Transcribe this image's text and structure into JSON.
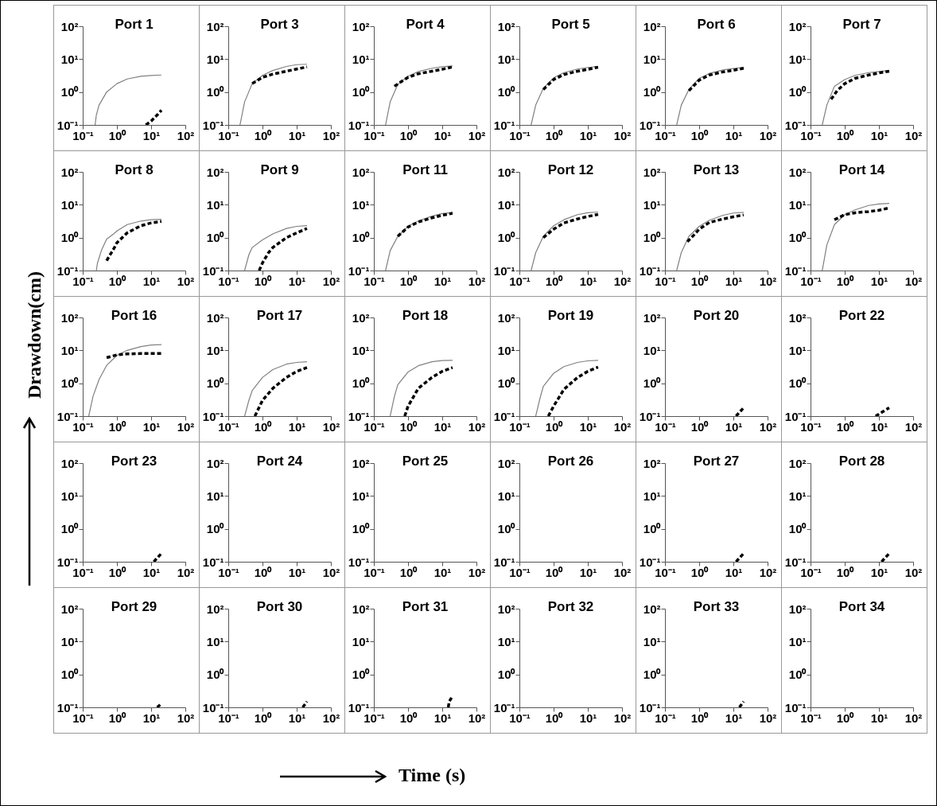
{
  "chart_data": [
    {
      "type": "line",
      "title": "Port 1",
      "xlabel": null,
      "xlim": [
        0.1,
        100
      ],
      "ylim": [
        0.1,
        100
      ],
      "xticks": [
        {
          "value": 0.1,
          "label": "10⁻¹"
        },
        {
          "value": 1,
          "label": "10⁰"
        },
        {
          "value": 10,
          "label": "10¹"
        },
        {
          "value": 100,
          "label": "10²"
        }
      ],
      "yticks": [
        {
          "value": 0.1,
          "label": "10⁻¹"
        },
        {
          "value": 1,
          "label": "10⁰"
        },
        {
          "value": 10,
          "label": "10¹"
        },
        {
          "value": 100,
          "label": "10²"
        }
      ],
      "log": "xy",
      "series": [
        {
          "color": "#808080",
          "line_style": "solid",
          "x": [
            0.23,
            0.25,
            0.3,
            0.5,
            1,
            2,
            5,
            10,
            20
          ],
          "values": [
            0.1,
            0.2,
            0.4,
            1.0,
            1.8,
            2.5,
            3.0,
            3.2,
            3.3
          ]
        },
        {
          "color": "#000000",
          "line_style": "dashed",
          "x": [
            7,
            10,
            15,
            20
          ],
          "values": [
            0.1,
            0.13,
            0.2,
            0.28
          ]
        }
      ]
    },
    {
      "type": "line",
      "title": "Port 3",
      "xlim": [
        0.1,
        100
      ],
      "ylim": [
        0.1,
        100
      ],
      "xticks": [
        {
          "value": 0.1,
          "label": "10⁻¹"
        },
        {
          "value": 1,
          "label": "10⁰"
        },
        {
          "value": 10,
          "label": "10¹"
        },
        {
          "value": 100,
          "label": "10²"
        }
      ],
      "yticks": [
        {
          "value": 0.1,
          "label": "10⁻¹"
        },
        {
          "value": 1,
          "label": "10⁰"
        },
        {
          "value": 10,
          "label": "10¹"
        },
        {
          "value": 100,
          "label": "10²"
        }
      ],
      "log": "xy",
      "series": [
        {
          "color": "#808080",
          "line_style": "solid",
          "x": [
            0.22,
            0.3,
            0.5,
            1,
            2,
            5,
            10,
            20
          ],
          "values": [
            0.1,
            0.5,
            1.8,
            3.2,
            4.5,
            6,
            6.8,
            7
          ]
        },
        {
          "color": "#000000",
          "line_style": "dashed",
          "x": [
            0.5,
            1,
            2,
            5,
            10,
            20
          ],
          "values": [
            1.8,
            2.8,
            3.5,
            4.3,
            5,
            5.8
          ]
        }
      ]
    },
    {
      "type": "line",
      "title": "Port 4",
      "xlim": [
        0.1,
        100
      ],
      "ylim": [
        0.1,
        100
      ],
      "xticks": [
        {
          "value": 0.1,
          "label": "10⁻¹"
        },
        {
          "value": 1,
          "label": "10⁰"
        },
        {
          "value": 10,
          "label": "10¹"
        },
        {
          "value": 100,
          "label": "10²"
        }
      ],
      "yticks": [
        {
          "value": 0.1,
          "label": "10⁻¹"
        },
        {
          "value": 1,
          "label": "10⁰"
        },
        {
          "value": 10,
          "label": "10¹"
        },
        {
          "value": 100,
          "label": "10²"
        }
      ],
      "log": "xy",
      "series": [
        {
          "color": "#808080",
          "line_style": "solid",
          "x": [
            0.22,
            0.3,
            0.5,
            1,
            2,
            5,
            10,
            20
          ],
          "values": [
            0.1,
            0.5,
            1.7,
            3,
            4.2,
            5.3,
            5.9,
            6.2
          ]
        },
        {
          "color": "#000000",
          "line_style": "dashed",
          "x": [
            0.4,
            0.6,
            1,
            2,
            5,
            10,
            20
          ],
          "values": [
            1.5,
            2,
            2.8,
            3.6,
            4.3,
            4.9,
            5.8
          ]
        }
      ]
    },
    {
      "type": "line",
      "title": "Port 5",
      "xlim": [
        0.1,
        100
      ],
      "ylim": [
        0.1,
        100
      ],
      "xticks": [
        {
          "value": 0.1,
          "label": "10⁻¹"
        },
        {
          "value": 1,
          "label": "10⁰"
        },
        {
          "value": 10,
          "label": "10¹"
        },
        {
          "value": 100,
          "label": "10²"
        }
      ],
      "yticks": [
        {
          "value": 0.1,
          "label": "10⁻¹"
        },
        {
          "value": 1,
          "label": "10⁰"
        },
        {
          "value": 10,
          "label": "10¹"
        },
        {
          "value": 100,
          "label": "10²"
        }
      ],
      "log": "xy",
      "series": [
        {
          "color": "#808080",
          "line_style": "solid",
          "x": [
            0.22,
            0.3,
            0.5,
            1,
            2,
            5,
            10,
            20
          ],
          "values": [
            0.1,
            0.4,
            1.3,
            2.7,
            3.9,
            5,
            5.6,
            6
          ]
        },
        {
          "color": "#000000",
          "line_style": "dashed",
          "x": [
            0.5,
            1,
            2,
            5,
            10,
            20
          ],
          "values": [
            1.2,
            2.4,
            3.4,
            4.3,
            4.9,
            5.7
          ]
        }
      ]
    },
    {
      "type": "line",
      "title": "Port 6",
      "xlim": [
        0.1,
        100
      ],
      "ylim": [
        0.1,
        100
      ],
      "xticks": [
        {
          "value": 0.1,
          "label": "10⁻¹"
        },
        {
          "value": 1,
          "label": "10⁰"
        },
        {
          "value": 10,
          "label": "10¹"
        },
        {
          "value": 100,
          "label": "10²"
        }
      ],
      "yticks": [
        {
          "value": 0.1,
          "label": "10⁻¹"
        },
        {
          "value": 1,
          "label": "10⁰"
        },
        {
          "value": 10,
          "label": "10¹"
        },
        {
          "value": 100,
          "label": "10²"
        }
      ],
      "log": "xy",
      "series": [
        {
          "color": "#808080",
          "line_style": "solid",
          "x": [
            0.22,
            0.3,
            0.5,
            1,
            2,
            5,
            10,
            20
          ],
          "values": [
            0.1,
            0.4,
            1.2,
            2.6,
            3.7,
            4.7,
            5.2,
            5.6
          ]
        },
        {
          "color": "#000000",
          "line_style": "dashed",
          "x": [
            0.5,
            1,
            2,
            5,
            10,
            20
          ],
          "values": [
            1.1,
            2.3,
            3.3,
            4.1,
            4.6,
            5.3
          ]
        }
      ]
    },
    {
      "type": "line",
      "title": "Port 7",
      "xlim": [
        0.1,
        100
      ],
      "ylim": [
        0.1,
        100
      ],
      "xticks": [
        {
          "value": 0.1,
          "label": "10⁻¹"
        },
        {
          "value": 1,
          "label": "10⁰"
        },
        {
          "value": 10,
          "label": "10¹"
        },
        {
          "value": 100,
          "label": "10²"
        }
      ],
      "yticks": [
        {
          "value": 0.1,
          "label": "10⁻¹"
        },
        {
          "value": 1,
          "label": "10⁰"
        },
        {
          "value": 10,
          "label": "10¹"
        },
        {
          "value": 100,
          "label": "10²"
        }
      ],
      "log": "xy",
      "series": [
        {
          "color": "#808080",
          "line_style": "solid",
          "x": [
            0.22,
            0.3,
            0.5,
            1,
            2,
            5,
            10,
            20
          ],
          "values": [
            0.1,
            0.4,
            1.5,
            2.4,
            3.2,
            3.9,
            4.2,
            4.5
          ]
        },
        {
          "color": "#000000",
          "line_style": "dashed",
          "x": [
            0.4,
            0.6,
            1,
            2,
            5,
            10,
            20
          ],
          "values": [
            0.6,
            1.1,
            1.8,
            2.6,
            3.3,
            3.8,
            4.3
          ]
        }
      ]
    },
    {
      "type": "line",
      "title": "Port 8",
      "xlim": [
        0.1,
        100
      ],
      "ylim": [
        0.1,
        100
      ],
      "xticks": [
        {
          "value": 0.1,
          "label": "10⁻¹"
        },
        {
          "value": 1,
          "label": "10⁰"
        },
        {
          "value": 10,
          "label": "10¹"
        },
        {
          "value": 100,
          "label": "10²"
        }
      ],
      "yticks": [
        {
          "value": 0.1,
          "label": "10⁻¹"
        },
        {
          "value": 1,
          "label": "10⁰"
        },
        {
          "value": 10,
          "label": "10¹"
        },
        {
          "value": 100,
          "label": "10²"
        }
      ],
      "log": "xy",
      "series": [
        {
          "color": "#808080",
          "line_style": "solid",
          "x": [
            0.25,
            0.27,
            0.35,
            0.5,
            0.8,
            1,
            2,
            5,
            10,
            20
          ],
          "values": [
            0.1,
            0.17,
            0.4,
            0.9,
            1.3,
            1.6,
            2.5,
            3.2,
            3.5,
            3.6
          ]
        },
        {
          "color": "#000000",
          "line_style": "dashed",
          "x": [
            0.5,
            0.8,
            1,
            2,
            5,
            10,
            20
          ],
          "values": [
            0.2,
            0.45,
            0.7,
            1.4,
            2.3,
            2.8,
            3.1
          ]
        }
      ]
    },
    {
      "type": "line",
      "title": "Port 9",
      "xlim": [
        0.1,
        100
      ],
      "ylim": [
        0.1,
        100
      ],
      "xticks": [
        {
          "value": 0.1,
          "label": "10⁻¹"
        },
        {
          "value": 1,
          "label": "10⁰"
        },
        {
          "value": 10,
          "label": "10¹"
        },
        {
          "value": 100,
          "label": "10²"
        }
      ],
      "yticks": [
        {
          "value": 0.1,
          "label": "10⁻¹"
        },
        {
          "value": 1,
          "label": "10⁰"
        },
        {
          "value": 10,
          "label": "10¹"
        },
        {
          "value": 100,
          "label": "10²"
        }
      ],
      "log": "xy",
      "series": [
        {
          "color": "#808080",
          "line_style": "solid",
          "x": [
            0.3,
            0.4,
            0.5,
            1,
            2,
            5,
            10,
            20
          ],
          "values": [
            0.1,
            0.3,
            0.5,
            0.85,
            1.3,
            1.9,
            2.2,
            2.3
          ]
        },
        {
          "color": "#000000",
          "line_style": "dashed",
          "x": [
            0.8,
            1,
            1.5,
            2,
            5,
            10,
            20
          ],
          "values": [
            0.1,
            0.17,
            0.35,
            0.5,
            1,
            1.4,
            1.9
          ]
        }
      ]
    },
    {
      "type": "line",
      "title": "Port 11",
      "xlim": [
        0.1,
        100
      ],
      "ylim": [
        0.1,
        100
      ],
      "xticks": [
        {
          "value": 0.1,
          "label": "10⁻¹"
        },
        {
          "value": 1,
          "label": "10⁰"
        },
        {
          "value": 10,
          "label": "10¹"
        },
        {
          "value": 100,
          "label": "10²"
        }
      ],
      "yticks": [
        {
          "value": 0.1,
          "label": "10⁻¹"
        },
        {
          "value": 1,
          "label": "10⁰"
        },
        {
          "value": 10,
          "label": "10¹"
        },
        {
          "value": 100,
          "label": "10²"
        }
      ],
      "log": "xy",
      "series": [
        {
          "color": "#808080",
          "line_style": "solid",
          "x": [
            0.22,
            0.3,
            0.5,
            1,
            2,
            5,
            10,
            20
          ],
          "values": [
            0.1,
            0.4,
            1.1,
            2.2,
            3.2,
            4.5,
            5.4,
            5.8
          ]
        },
        {
          "color": "#000000",
          "line_style": "dashed",
          "x": [
            0.5,
            1,
            2,
            5,
            10,
            20
          ],
          "values": [
            1.1,
            2.1,
            3,
            4,
            4.8,
            5.5
          ]
        }
      ]
    },
    {
      "type": "line",
      "title": "Port 12",
      "xlim": [
        0.1,
        100
      ],
      "ylim": [
        0.1,
        100
      ],
      "xticks": [
        {
          "value": 0.1,
          "label": "10⁻¹"
        },
        {
          "value": 1,
          "label": "10⁰"
        },
        {
          "value": 10,
          "label": "10¹"
        },
        {
          "value": 100,
          "label": "10²"
        }
      ],
      "yticks": [
        {
          "value": 0.1,
          "label": "10⁻¹"
        },
        {
          "value": 1,
          "label": "10⁰"
        },
        {
          "value": 10,
          "label": "10¹"
        },
        {
          "value": 100,
          "label": "10²"
        }
      ],
      "log": "xy",
      "series": [
        {
          "color": "#808080",
          "line_style": "solid",
          "x": [
            0.22,
            0.3,
            0.5,
            1,
            2,
            5,
            10,
            20
          ],
          "values": [
            0.1,
            0.35,
            1.1,
            2.3,
            3.5,
            5,
            5.7,
            6
          ]
        },
        {
          "color": "#000000",
          "line_style": "dashed",
          "x": [
            0.5,
            1,
            2,
            5,
            10,
            20
          ],
          "values": [
            1.0,
            1.8,
            2.8,
            3.7,
            4.4,
            5.1
          ]
        }
      ]
    },
    {
      "type": "line",
      "title": "Port 13",
      "xlim": [
        0.1,
        100
      ],
      "ylim": [
        0.1,
        100
      ],
      "xticks": [
        {
          "value": 0.1,
          "label": "10⁻¹"
        },
        {
          "value": 1,
          "label": "10⁰"
        },
        {
          "value": 10,
          "label": "10¹"
        },
        {
          "value": 100,
          "label": "10²"
        }
      ],
      "yticks": [
        {
          "value": 0.1,
          "label": "10⁻¹"
        },
        {
          "value": 1,
          "label": "10⁰"
        },
        {
          "value": 10,
          "label": "10¹"
        },
        {
          "value": 100,
          "label": "10²"
        }
      ],
      "log": "xy",
      "series": [
        {
          "color": "#808080",
          "line_style": "solid",
          "x": [
            0.22,
            0.3,
            0.5,
            1,
            2,
            5,
            10,
            20
          ],
          "values": [
            0.1,
            0.35,
            1.1,
            2.2,
            3.4,
            4.8,
            5.6,
            5.9
          ]
        },
        {
          "color": "#000000",
          "line_style": "dashed",
          "x": [
            0.45,
            0.7,
            1,
            2,
            5,
            10,
            20
          ],
          "values": [
            0.75,
            1.2,
            1.8,
            2.9,
            3.7,
            4.3,
            4.9
          ]
        }
      ]
    },
    {
      "type": "line",
      "title": "Port 14",
      "xlim": [
        0.1,
        100
      ],
      "ylim": [
        0.1,
        100
      ],
      "xticks": [
        {
          "value": 0.1,
          "label": "10⁻¹"
        },
        {
          "value": 1,
          "label": "10⁰"
        },
        {
          "value": 10,
          "label": "10¹"
        },
        {
          "value": 100,
          "label": "10²"
        }
      ],
      "yticks": [
        {
          "value": 0.1,
          "label": "10⁻¹"
        },
        {
          "value": 1,
          "label": "10⁰"
        },
        {
          "value": 10,
          "label": "10¹"
        },
        {
          "value": 100,
          "label": "10²"
        }
      ],
      "log": "xy",
      "series": [
        {
          "color": "#808080",
          "line_style": "solid",
          "x": [
            0.22,
            0.3,
            0.5,
            1,
            2,
            5,
            10,
            20
          ],
          "values": [
            0.1,
            0.6,
            2.5,
            5,
            7,
            9.5,
            10.5,
            11
          ]
        },
        {
          "color": "#000000",
          "line_style": "dashed",
          "x": [
            0.5,
            1,
            2,
            5,
            10,
            20
          ],
          "values": [
            3.5,
            5,
            5.7,
            6.2,
            6.8,
            8
          ]
        }
      ]
    },
    {
      "type": "line",
      "title": "Port 16",
      "ylabel": "Drawdown(cm)",
      "xlim": [
        0.1,
        100
      ],
      "ylim": [
        0.1,
        100
      ],
      "xticks": [
        {
          "value": 0.1,
          "label": "10⁻¹"
        },
        {
          "value": 1,
          "label": "10⁰"
        },
        {
          "value": 10,
          "label": "10¹"
        },
        {
          "value": 100,
          "label": "10²"
        }
      ],
      "yticks": [
        {
          "value": 0.1,
          "label": "10⁻¹"
        },
        {
          "value": 1,
          "label": "10⁰"
        },
        {
          "value": 10,
          "label": "10¹"
        },
        {
          "value": 100,
          "label": "10²"
        }
      ],
      "log": "xy",
      "series": [
        {
          "color": "#808080",
          "line_style": "solid",
          "x": [
            0.15,
            0.2,
            0.3,
            0.5,
            1,
            2,
            5,
            10,
            20
          ],
          "values": [
            0.1,
            0.4,
            1.3,
            3.5,
            7,
            10,
            13,
            14.5,
            15
          ]
        },
        {
          "color": "#000000",
          "line_style": "dashed",
          "x": [
            0.5,
            1,
            2,
            5,
            10,
            20
          ],
          "values": [
            6,
            7.3,
            7.8,
            8,
            8,
            8
          ]
        }
      ]
    },
    {
      "type": "line",
      "title": "Port 17",
      "xlim": [
        0.1,
        100
      ],
      "ylim": [
        0.1,
        100
      ],
      "xticks": [
        {
          "value": 0.1,
          "label": "10⁻¹"
        },
        {
          "value": 1,
          "label": "10⁰"
        },
        {
          "value": 10,
          "label": "10¹"
        },
        {
          "value": 100,
          "label": "10²"
        }
      ],
      "yticks": [
        {
          "value": 0.1,
          "label": "10⁻¹"
        },
        {
          "value": 1,
          "label": "10⁰"
        },
        {
          "value": 10,
          "label": "10¹"
        },
        {
          "value": 100,
          "label": "10²"
        }
      ],
      "log": "xy",
      "series": [
        {
          "color": "#808080",
          "line_style": "solid",
          "x": [
            0.3,
            0.4,
            0.5,
            1,
            2,
            5,
            10,
            20
          ],
          "values": [
            0.1,
            0.3,
            0.6,
            1.5,
            2.6,
            3.8,
            4.3,
            4.5
          ]
        },
        {
          "color": "#000000",
          "line_style": "dashed",
          "x": [
            0.6,
            1,
            2,
            5,
            10,
            20
          ],
          "values": [
            0.1,
            0.3,
            0.7,
            1.5,
            2.3,
            3.0
          ]
        }
      ]
    },
    {
      "type": "line",
      "title": "Port 18",
      "xlim": [
        0.1,
        100
      ],
      "ylim": [
        0.1,
        100
      ],
      "xticks": [
        {
          "value": 0.1,
          "label": "10⁻¹"
        },
        {
          "value": 1,
          "label": "10⁰"
        },
        {
          "value": 10,
          "label": "10¹"
        },
        {
          "value": 100,
          "label": "10²"
        }
      ],
      "yticks": [
        {
          "value": 0.1,
          "label": "10⁻¹"
        },
        {
          "value": 1,
          "label": "10⁰"
        },
        {
          "value": 10,
          "label": "10¹"
        },
        {
          "value": 100,
          "label": "10²"
        }
      ],
      "log": "xy",
      "series": [
        {
          "color": "#808080",
          "line_style": "solid",
          "x": [
            0.3,
            0.4,
            0.5,
            1,
            2,
            5,
            10,
            20
          ],
          "values": [
            0.1,
            0.4,
            0.9,
            2.2,
            3.4,
            4.5,
            4.9,
            5
          ]
        },
        {
          "color": "#000000",
          "line_style": "dashed",
          "x": [
            0.8,
            1,
            2,
            5,
            10,
            20
          ],
          "values": [
            0.1,
            0.2,
            0.7,
            1.5,
            2.3,
            3.0
          ]
        }
      ]
    },
    {
      "type": "line",
      "title": "Port 19",
      "xlim": [
        0.1,
        100
      ],
      "ylim": [
        0.1,
        100
      ],
      "xticks": [
        {
          "value": 0.1,
          "label": "10⁻¹"
        },
        {
          "value": 1,
          "label": "10⁰"
        },
        {
          "value": 10,
          "label": "10¹"
        },
        {
          "value": 100,
          "label": "10²"
        }
      ],
      "yticks": [
        {
          "value": 0.1,
          "label": "10⁻¹"
        },
        {
          "value": 1,
          "label": "10⁰"
        },
        {
          "value": 10,
          "label": "10¹"
        },
        {
          "value": 100,
          "label": "10²"
        }
      ],
      "log": "xy",
      "series": [
        {
          "color": "#808080",
          "line_style": "solid",
          "x": [
            0.3,
            0.4,
            0.5,
            1,
            2,
            5,
            10,
            20
          ],
          "values": [
            0.1,
            0.35,
            0.8,
            2,
            3.2,
            4.3,
            4.8,
            5
          ]
        },
        {
          "color": "#000000",
          "line_style": "dashed",
          "x": [
            0.7,
            1,
            2,
            5,
            10,
            20
          ],
          "values": [
            0.1,
            0.2,
            0.65,
            1.5,
            2.3,
            3.1
          ]
        }
      ]
    },
    {
      "type": "line",
      "title": "Port 20",
      "xlim": [
        0.1,
        100
      ],
      "ylim": [
        0.1,
        100
      ],
      "xticks": [
        {
          "value": 0.1,
          "label": "10⁻¹"
        },
        {
          "value": 1,
          "label": "10⁰"
        },
        {
          "value": 10,
          "label": "10¹"
        },
        {
          "value": 100,
          "label": "10²"
        }
      ],
      "yticks": [
        {
          "value": 0.1,
          "label": "10⁻¹"
        },
        {
          "value": 1,
          "label": "10⁰"
        },
        {
          "value": 10,
          "label": "10¹"
        },
        {
          "value": 100,
          "label": "10²"
        }
      ],
      "log": "xy",
      "series": [
        {
          "color": "#000000",
          "line_style": "dashed",
          "x": [
            12,
            15,
            20
          ],
          "values": [
            0.1,
            0.13,
            0.18
          ]
        }
      ]
    },
    {
      "type": "line",
      "title": "Port 22",
      "xlim": [
        0.1,
        100
      ],
      "ylim": [
        0.1,
        100
      ],
      "xticks": [
        {
          "value": 0.1,
          "label": "10⁻¹"
        },
        {
          "value": 1,
          "label": "10⁰"
        },
        {
          "value": 10,
          "label": "10¹"
        },
        {
          "value": 100,
          "label": "10²"
        }
      ],
      "yticks": [
        {
          "value": 0.1,
          "label": "10⁻¹"
        },
        {
          "value": 1,
          "label": "10⁰"
        },
        {
          "value": 10,
          "label": "10¹"
        },
        {
          "value": 100,
          "label": "10²"
        }
      ],
      "log": "xy",
      "series": [
        {
          "color": "#000000",
          "line_style": "dashed",
          "x": [
            8,
            15,
            20
          ],
          "values": [
            0.1,
            0.15,
            0.18
          ]
        }
      ]
    },
    {
      "type": "line",
      "title": "Port 23",
      "xlim": [
        0.1,
        100
      ],
      "ylim": [
        0.1,
        100
      ],
      "xticks": [
        {
          "value": 0.1,
          "label": "10⁻¹"
        },
        {
          "value": 1,
          "label": "10⁰"
        },
        {
          "value": 10,
          "label": "10¹"
        },
        {
          "value": 100,
          "label": "10²"
        }
      ],
      "yticks": [
        {
          "value": 0.1,
          "label": "10⁻¹"
        },
        {
          "value": 1,
          "label": "10⁰"
        },
        {
          "value": 10,
          "label": "10¹"
        },
        {
          "value": 100,
          "label": "10²"
        }
      ],
      "log": "xy",
      "series": [
        {
          "color": "#000000",
          "line_style": "dashed",
          "x": [
            12,
            20
          ],
          "values": [
            0.1,
            0.18
          ]
        }
      ]
    },
    {
      "type": "line",
      "title": "Port 24",
      "xlim": [
        0.1,
        100
      ],
      "ylim": [
        0.1,
        100
      ],
      "xticks": [
        {
          "value": 0.1,
          "label": "10⁻¹"
        },
        {
          "value": 1,
          "label": "10⁰"
        },
        {
          "value": 10,
          "label": "10¹"
        },
        {
          "value": 100,
          "label": "10²"
        }
      ],
      "yticks": [
        {
          "value": 0.1,
          "label": "10⁻¹"
        },
        {
          "value": 1,
          "label": "10⁰"
        },
        {
          "value": 10,
          "label": "10¹"
        },
        {
          "value": 100,
          "label": "10²"
        }
      ],
      "log": "xy"
    },
    {
      "type": "line",
      "title": "Port 25",
      "xlim": [
        0.1,
        100
      ],
      "ylim": [
        0.1,
        100
      ],
      "xticks": [
        {
          "value": 0.1,
          "label": "10⁻¹"
        },
        {
          "value": 1,
          "label": "10⁰"
        },
        {
          "value": 10,
          "label": "10¹"
        },
        {
          "value": 100,
          "label": "10²"
        }
      ],
      "yticks": [
        {
          "value": 0.1,
          "label": "10⁻¹"
        },
        {
          "value": 1,
          "label": "10⁰"
        },
        {
          "value": 10,
          "label": "10¹"
        },
        {
          "value": 100,
          "label": "10²"
        }
      ],
      "log": "xy"
    },
    {
      "type": "line",
      "title": "Port 26",
      "xlim": [
        0.1,
        100
      ],
      "ylim": [
        0.1,
        100
      ],
      "xticks": [
        {
          "value": 0.1,
          "label": "10⁻¹"
        },
        {
          "value": 1,
          "label": "10⁰"
        },
        {
          "value": 10,
          "label": "10¹"
        },
        {
          "value": 100,
          "label": "10²"
        }
      ],
      "yticks": [
        {
          "value": 0.1,
          "label": "10⁻¹"
        },
        {
          "value": 1,
          "label": "10⁰"
        },
        {
          "value": 10,
          "label": "10¹"
        },
        {
          "value": 100,
          "label": "10²"
        }
      ],
      "log": "xy"
    },
    {
      "type": "line",
      "title": "Port 27",
      "xlim": [
        0.1,
        100
      ],
      "ylim": [
        0.1,
        100
      ],
      "xticks": [
        {
          "value": 0.1,
          "label": "10⁻¹"
        },
        {
          "value": 1,
          "label": "10⁰"
        },
        {
          "value": 10,
          "label": "10¹"
        },
        {
          "value": 100,
          "label": "10²"
        }
      ],
      "yticks": [
        {
          "value": 0.1,
          "label": "10⁻¹"
        },
        {
          "value": 1,
          "label": "10⁰"
        },
        {
          "value": 10,
          "label": "10¹"
        },
        {
          "value": 100,
          "label": "10²"
        }
      ],
      "log": "xy",
      "series": [
        {
          "color": "#000000",
          "line_style": "dashed",
          "x": [
            12,
            20
          ],
          "values": [
            0.1,
            0.18
          ]
        }
      ]
    },
    {
      "type": "line",
      "title": "Port 28",
      "xlim": [
        0.1,
        100
      ],
      "ylim": [
        0.1,
        100
      ],
      "xticks": [
        {
          "value": 0.1,
          "label": "10⁻¹"
        },
        {
          "value": 1,
          "label": "10⁰"
        },
        {
          "value": 10,
          "label": "10¹"
        },
        {
          "value": 100,
          "label": "10²"
        }
      ],
      "yticks": [
        {
          "value": 0.1,
          "label": "10⁻¹"
        },
        {
          "value": 1,
          "label": "10⁰"
        },
        {
          "value": 10,
          "label": "10¹"
        },
        {
          "value": 100,
          "label": "10²"
        }
      ],
      "log": "xy",
      "series": [
        {
          "color": "#000000",
          "line_style": "dashed",
          "x": [
            12,
            20
          ],
          "values": [
            0.1,
            0.18
          ]
        }
      ]
    },
    {
      "type": "line",
      "title": "Port 29",
      "xlim": [
        0.1,
        100
      ],
      "ylim": [
        0.1,
        100
      ],
      "xticks": [
        {
          "value": 0.1,
          "label": "10⁻¹"
        },
        {
          "value": 1,
          "label": "10⁰"
        },
        {
          "value": 10,
          "label": "10¹"
        },
        {
          "value": 100,
          "label": "10²"
        }
      ],
      "yticks": [
        {
          "value": 0.1,
          "label": "10⁻¹"
        },
        {
          "value": 1,
          "label": "10⁰"
        },
        {
          "value": 10,
          "label": "10¹"
        },
        {
          "value": 100,
          "label": "10²"
        }
      ],
      "log": "xy",
      "series": [
        {
          "color": "#000000",
          "line_style": "dashed",
          "x": [
            15,
            20
          ],
          "values": [
            0.1,
            0.13
          ]
        }
      ]
    },
    {
      "type": "line",
      "title": "Port 30",
      "xlim": [
        0.1,
        100
      ],
      "ylim": [
        0.1,
        100
      ],
      "xticks": [
        {
          "value": 0.1,
          "label": "10⁻¹"
        },
        {
          "value": 1,
          "label": "10⁰"
        },
        {
          "value": 10,
          "label": "10¹"
        },
        {
          "value": 100,
          "label": "10²"
        }
      ],
      "yticks": [
        {
          "value": 0.1,
          "label": "10⁻¹"
        },
        {
          "value": 1,
          "label": "10⁰"
        },
        {
          "value": 10,
          "label": "10¹"
        },
        {
          "value": 100,
          "label": "10²"
        }
      ],
      "log": "xy",
      "series": [
        {
          "color": "#000000",
          "line_style": "dashed",
          "x": [
            15,
            20
          ],
          "values": [
            0.1,
            0.15
          ]
        }
      ]
    },
    {
      "type": "line",
      "title": "Port 31",
      "xlabel": "Time (s)",
      "xlim": [
        0.1,
        100
      ],
      "ylim": [
        0.1,
        100
      ],
      "xticks": [
        {
          "value": 0.1,
          "label": "10⁻¹"
        },
        {
          "value": 1,
          "label": "10⁰"
        },
        {
          "value": 10,
          "label": "10¹"
        },
        {
          "value": 100,
          "label": "10²"
        }
      ],
      "yticks": [
        {
          "value": 0.1,
          "label": "10⁻¹"
        },
        {
          "value": 1,
          "label": "10⁰"
        },
        {
          "value": 10,
          "label": "10¹"
        },
        {
          "value": 100,
          "label": "10²"
        }
      ],
      "log": "xy",
      "series": [
        {
          "color": "#000000",
          "line_style": "dashed",
          "x": [
            15,
            16,
            20
          ],
          "values": [
            0.1,
            0.15,
            0.22
          ]
        }
      ]
    },
    {
      "type": "line",
      "title": "Port 32",
      "xlim": [
        0.1,
        100
      ],
      "ylim": [
        0.1,
        100
      ],
      "xticks": [
        {
          "value": 0.1,
          "label": "10⁻¹"
        },
        {
          "value": 1,
          "label": "10⁰"
        },
        {
          "value": 10,
          "label": "10¹"
        },
        {
          "value": 100,
          "label": "10²"
        }
      ],
      "yticks": [
        {
          "value": 0.1,
          "label": "10⁻¹"
        },
        {
          "value": 1,
          "label": "10⁰"
        },
        {
          "value": 10,
          "label": "10¹"
        },
        {
          "value": 100,
          "label": "10²"
        }
      ],
      "log": "xy"
    },
    {
      "type": "line",
      "title": "Port 33",
      "xlim": [
        0.1,
        100
      ],
      "ylim": [
        0.1,
        100
      ],
      "xticks": [
        {
          "value": 0.1,
          "label": "10⁻¹"
        },
        {
          "value": 1,
          "label": "10⁰"
        },
        {
          "value": 10,
          "label": "10¹"
        },
        {
          "value": 100,
          "label": "10²"
        }
      ],
      "yticks": [
        {
          "value": 0.1,
          "label": "10⁻¹"
        },
        {
          "value": 1,
          "label": "10⁰"
        },
        {
          "value": 10,
          "label": "10¹"
        },
        {
          "value": 100,
          "label": "10²"
        }
      ],
      "log": "xy",
      "series": [
        {
          "color": "#000000",
          "line_style": "dashed",
          "x": [
            15,
            20
          ],
          "values": [
            0.1,
            0.15
          ]
        }
      ]
    },
    {
      "type": "line",
      "title": "Port 34",
      "xlim": [
        0.1,
        100
      ],
      "ylim": [
        0.1,
        100
      ],
      "xticks": [
        {
          "value": 0.1,
          "label": "10⁻¹"
        },
        {
          "value": 1,
          "label": "10⁰"
        },
        {
          "value": 10,
          "label": "10¹"
        },
        {
          "value": 100,
          "label": "10²"
        }
      ],
      "yticks": [
        {
          "value": 0.1,
          "label": "10⁻¹"
        },
        {
          "value": 1,
          "label": "10⁰"
        },
        {
          "value": 10,
          "label": "10¹"
        },
        {
          "value": 100,
          "label": "10²"
        }
      ],
      "log": "xy"
    }
  ]
}
